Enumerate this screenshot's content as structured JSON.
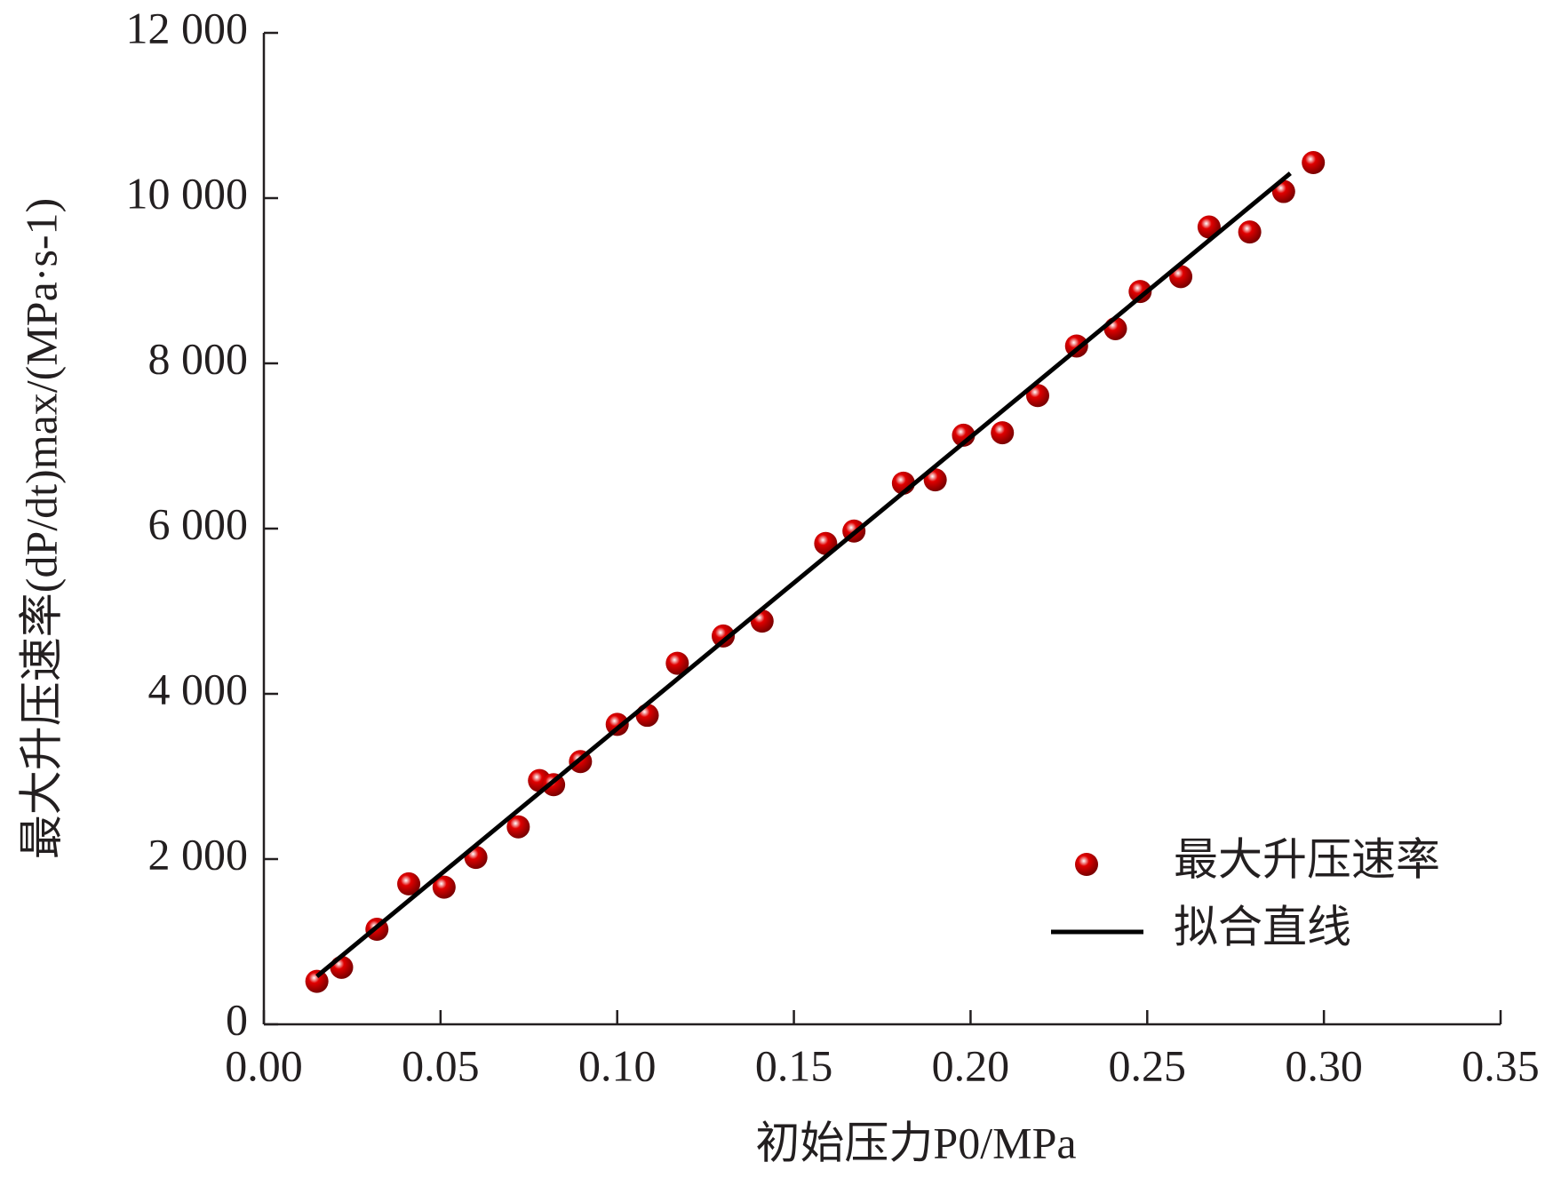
{
  "chart_data": {
    "type": "scatter",
    "xlabel": "初始压力P0/MPa",
    "ylabel": "最大升压速率(dP/dt)max/(MPa·s-1)",
    "xlim": [
      0,
      0.35
    ],
    "ylim": [
      0,
      12000
    ],
    "xticks": [
      {
        "value": 0,
        "label": "0.00"
      },
      0.05,
      {
        "value": 0.1,
        "label": "0.10"
      },
      0.15,
      {
        "value": 0.2,
        "label": "0.20"
      },
      0.25,
      {
        "value": 0.3,
        "label": "0.30"
      },
      0.35
    ],
    "yticks": [
      0,
      {
        "value": 2000,
        "label": "2 000"
      },
      {
        "value": 4000,
        "label": "4 000"
      },
      {
        "value": 6000,
        "label": "6 000"
      },
      {
        "value": 8000,
        "label": "8 000"
      },
      {
        "value": 10000,
        "label": "10 000"
      },
      {
        "value": 12000,
        "label": "12 000"
      }
    ],
    "legend": "lower right",
    "series": [
      {
        "name": "最大升压速率",
        "type": "scatter",
        "color": "#e00000",
        "x": [
          0.015,
          0.022,
          0.032,
          0.041,
          0.051,
          0.06,
          0.072,
          0.078,
          0.082,
          0.0896,
          0.1,
          0.1085,
          0.117,
          0.13,
          0.141,
          0.159,
          0.167,
          0.181,
          0.19,
          0.198,
          0.209,
          0.219,
          0.23,
          0.241,
          0.248,
          0.2595,
          0.2675,
          0.279,
          0.2886,
          0.297
        ],
        "values": [
          520,
          690,
          1150,
          1700,
          1660,
          2020,
          2390,
          2950,
          2900,
          3180,
          3630,
          3740,
          4370,
          4700,
          4880,
          5820,
          5970,
          6550,
          6590,
          7130,
          7160,
          7610,
          8210,
          8420,
          8870,
          9050,
          9650,
          9590,
          10080,
          10430
        ]
      },
      {
        "name": "拟合直线",
        "type": "line",
        "color": "#000000",
        "x": [
          0.015,
          0.2905
        ],
        "values": [
          580,
          10300
        ]
      }
    ]
  }
}
